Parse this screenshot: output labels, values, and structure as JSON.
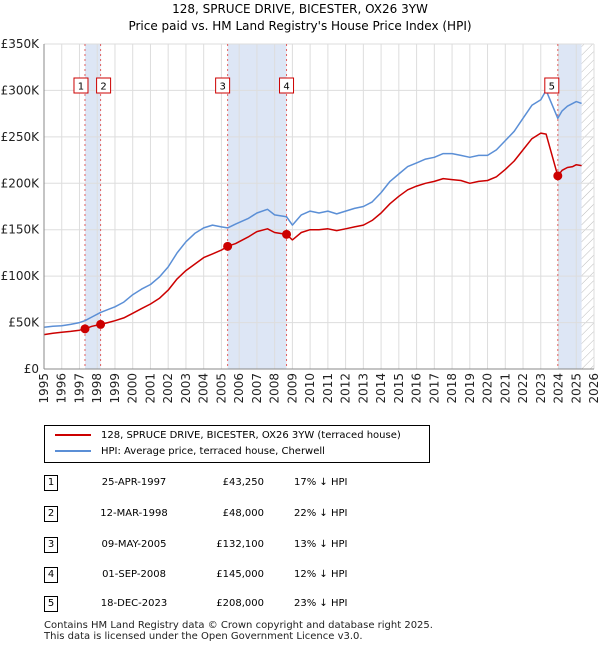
{
  "title_line1": "128, SPRUCE DRIVE, BICESTER, OX26 3YW",
  "title_line2": "Price paid vs. HM Land Registry's House Price Index (HPI)",
  "legend": {
    "property_label": "128, SPRUCE DRIVE, BICESTER, OX26 3YW (terraced house)",
    "hpi_label": "HPI: Average price, terraced house, Cherwell",
    "property_color": "#cc0000",
    "hpi_color": "#5b8fd6"
  },
  "sales": [
    {
      "num": "1",
      "date": "25-APR-1997",
      "price": "£43,250",
      "diff": "17% ↓ HPI"
    },
    {
      "num": "2",
      "date": "12-MAR-1998",
      "price": "£48,000",
      "diff": "22% ↓ HPI"
    },
    {
      "num": "3",
      "date": "09-MAY-2005",
      "price": "£132,100",
      "diff": "13% ↓ HPI"
    },
    {
      "num": "4",
      "date": "01-SEP-2008",
      "price": "£145,000",
      "diff": "12% ↓ HPI"
    },
    {
      "num": "5",
      "date": "18-DEC-2023",
      "price": "£208,000",
      "diff": "23% ↓ HPI"
    }
  ],
  "footer_line1": "Contains HM Land Registry data © Crown copyright and database right 2025.",
  "footer_line2": "This data is licensed under the Open Government Licence v3.0.",
  "chart_data": {
    "type": "line",
    "title": "128, SPRUCE DRIVE, BICESTER, OX26 3YW — Price paid vs. HM Land Registry's House Price Index (HPI)",
    "xlim": [
      1995,
      2026
    ],
    "ylim": [
      0,
      350000
    ],
    "x_ticks": [
      "1995",
      "1996",
      "1997",
      "1998",
      "1999",
      "2000",
      "2001",
      "2002",
      "2003",
      "2004",
      "2005",
      "2006",
      "2007",
      "2008",
      "2009",
      "2010",
      "2011",
      "2012",
      "2013",
      "2014",
      "2015",
      "2016",
      "2017",
      "2018",
      "2019",
      "2020",
      "2021",
      "2022",
      "2023",
      "2024",
      "2025",
      "2026"
    ],
    "y_ticks": [
      {
        "value": 0,
        "label": "£0"
      },
      {
        "value": 50000,
        "label": "£50K"
      },
      {
        "value": 100000,
        "label": "£100K"
      },
      {
        "value": 150000,
        "label": "£150K"
      },
      {
        "value": 200000,
        "label": "£200K"
      },
      {
        "value": 250000,
        "label": "£250K"
      },
      {
        "value": 300000,
        "label": "£300K"
      },
      {
        "value": 350000,
        "label": "£350K"
      }
    ],
    "shaded_periods": [
      [
        1997.31,
        1998.19
      ],
      [
        2005.35,
        2008.67
      ],
      [
        2023.96,
        2025.3
      ]
    ],
    "hatched_after": 2025.3,
    "series": [
      {
        "name": "HPI: Average price, terraced house, Cherwell",
        "color": "#5b8fd6",
        "x": [
          1995,
          1995.5,
          1996,
          1996.5,
          1997,
          1997.31,
          1997.7,
          1998.19,
          1998.6,
          1999,
          1999.5,
          2000,
          2000.5,
          2001,
          2001.5,
          2002,
          2002.5,
          2003,
          2003.5,
          2004,
          2004.5,
          2005,
          2005.35,
          2005.8,
          2006.5,
          2007,
          2007.6,
          2008,
          2008.67,
          2009,
          2009.5,
          2010,
          2010.5,
          2011,
          2011.5,
          2012,
          2012.5,
          2013,
          2013.5,
          2014,
          2014.5,
          2015,
          2015.5,
          2016,
          2016.5,
          2017,
          2017.5,
          2018,
          2018.5,
          2019,
          2019.5,
          2020,
          2020.5,
          2021,
          2021.5,
          2022,
          2022.5,
          2023,
          2023.3,
          2023.96,
          2024.2,
          2024.5,
          2024.8,
          2025,
          2025.3
        ],
        "values": [
          45000,
          46000,
          46500,
          48000,
          50000,
          52000,
          56000,
          61000,
          64000,
          67000,
          72000,
          80000,
          86000,
          91000,
          99000,
          110000,
          125000,
          137000,
          146000,
          152000,
          155000,
          153000,
          152000,
          156000,
          162000,
          168000,
          172000,
          166000,
          164000,
          155000,
          166000,
          170000,
          168000,
          170000,
          167000,
          170000,
          173000,
          175000,
          180000,
          190000,
          202000,
          210000,
          218000,
          222000,
          226000,
          228000,
          232000,
          232000,
          230000,
          228000,
          230000,
          230000,
          236000,
          246000,
          256000,
          270000,
          284000,
          290000,
          300000,
          270000,
          278000,
          283000,
          286000,
          288000,
          286000
        ]
      },
      {
        "name": "128, SPRUCE DRIVE, BICESTER, OX26 3YW (terraced house)",
        "color": "#cc0000",
        "x": [
          1995,
          1995.5,
          1996,
          1996.5,
          1997,
          1997.31,
          1997.7,
          1998.19,
          1998.6,
          1999,
          1999.5,
          2000,
          2000.5,
          2001,
          2001.5,
          2002,
          2002.5,
          2003,
          2003.5,
          2004,
          2004.5,
          2005,
          2005.35,
          2005.8,
          2006.5,
          2007,
          2007.6,
          2008,
          2008.67,
          2009,
          2009.5,
          2010,
          2010.5,
          2011,
          2011.5,
          2012,
          2012.5,
          2013,
          2013.5,
          2014,
          2014.5,
          2015,
          2015.5,
          2016,
          2016.5,
          2017,
          2017.5,
          2018,
          2018.5,
          2019,
          2019.5,
          2020,
          2020.5,
          2021,
          2021.5,
          2022,
          2022.5,
          2023,
          2023.3,
          2023.96,
          2024.2,
          2024.5,
          2024.8,
          2025,
          2025.3
        ],
        "values": [
          37000,
          38500,
          39500,
          40500,
          41800,
          43250,
          46000,
          48000,
          50000,
          52000,
          55000,
          60000,
          65000,
          70000,
          76000,
          85000,
          97000,
          106000,
          113000,
          120000,
          124000,
          128000,
          132100,
          135000,
          142000,
          148000,
          151000,
          147000,
          145000,
          139000,
          147000,
          150000,
          150000,
          151000,
          149000,
          151000,
          153000,
          155000,
          160000,
          168000,
          178000,
          186000,
          193000,
          197000,
          200000,
          202000,
          205000,
          204000,
          203000,
          200000,
          202000,
          203000,
          207000,
          215000,
          224000,
          236000,
          248000,
          254000,
          253000,
          208000,
          214000,
          217000,
          218000,
          220000,
          219000
        ]
      }
    ],
    "sales_points": [
      {
        "label": "1",
        "x": 1997.31,
        "y": 43250
      },
      {
        "label": "2",
        "x": 1998.19,
        "y": 48000
      },
      {
        "label": "3",
        "x": 2005.35,
        "y": 132100
      },
      {
        "label": "4",
        "x": 2008.67,
        "y": 145000
      },
      {
        "label": "5",
        "x": 2023.96,
        "y": 208000
      }
    ]
  }
}
